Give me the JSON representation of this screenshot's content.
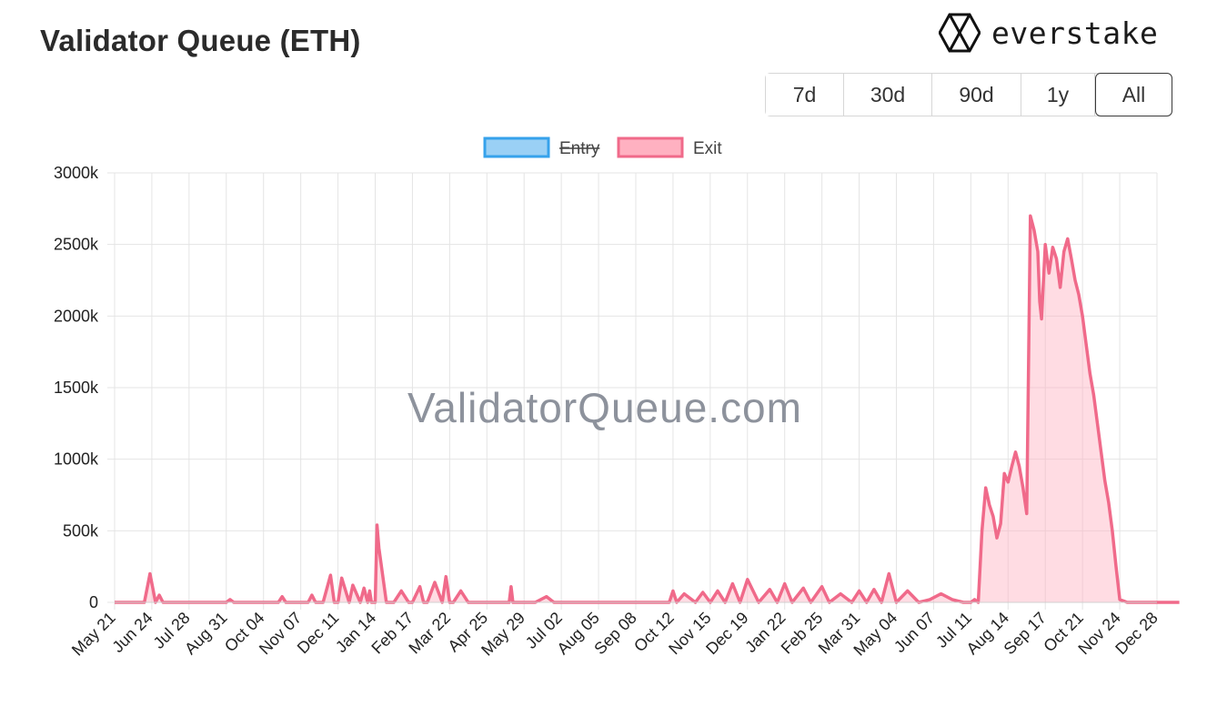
{
  "header": {
    "title": "Validator Queue (ETH)"
  },
  "brand": {
    "name": "everstake",
    "icon": "hexagon-logo-icon"
  },
  "range_buttons": [
    {
      "label": "7d",
      "active": false
    },
    {
      "label": "30d",
      "active": false
    },
    {
      "label": "90d",
      "active": false
    },
    {
      "label": "1y",
      "active": false
    },
    {
      "label": "All",
      "active": true
    }
  ],
  "watermark": "ValidatorQueue.com",
  "chart_data": {
    "type": "area",
    "ylim": [
      0,
      3000000
    ],
    "y_ticks": [
      "0",
      "500k",
      "1000k",
      "1500k",
      "2000k",
      "2500k",
      "3000k"
    ],
    "x_ticks": [
      "May 21",
      "Jun 24",
      "Jul 28",
      "Aug 31",
      "Oct 04",
      "Nov 07",
      "Dec 11",
      "Jan 14",
      "Feb 17",
      "Mar 22",
      "Apr 25",
      "May 29",
      "Jul 02",
      "Aug 05",
      "Sep 08",
      "Oct 12",
      "Nov 15",
      "Dec 19",
      "Jan 22",
      "Feb 25",
      "Mar 31",
      "May 04",
      "Jun 07",
      "Jul 11",
      "Aug 14",
      "Sep 17",
      "Oct 21",
      "Nov 24",
      "Dec 28"
    ],
    "legend": {
      "placement": "top-center"
    },
    "grid": true,
    "series": [
      {
        "name": "Entry",
        "hidden": true,
        "color": "#36a2eb",
        "fill": "#9ad0f5",
        "values": []
      },
      {
        "name": "Exit",
        "hidden": false,
        "color": "#f06a8a",
        "fill": "#ffb1c1",
        "x": [
          0,
          0.5,
          0.8,
          0.95,
          1.1,
          1.2,
          1.3,
          1.4,
          1.6,
          3,
          3.1,
          3.2,
          4.4,
          4.5,
          4.6,
          5.2,
          5.3,
          5.4,
          5.6,
          5.8,
          5.9,
          6.0,
          6.1,
          6.3,
          6.4,
          6.6,
          6.7,
          6.8,
          6.85,
          6.9,
          7.0,
          7.05,
          7.1,
          7.3,
          7.5,
          7.7,
          7.9,
          8.0,
          8.2,
          8.3,
          8.4,
          8.6,
          8.8,
          8.9,
          9.0,
          9.1,
          9.3,
          9.5,
          10.0,
          10.6,
          10.65,
          10.7,
          11.0,
          11.3,
          11.6,
          11.8,
          12.0,
          12.3,
          12.7,
          13.0,
          13.5,
          14.0,
          14.5,
          14.9,
          15.0,
          15.1,
          15.3,
          15.6,
          15.8,
          16.0,
          16.2,
          16.4,
          16.6,
          16.8,
          17.0,
          17.3,
          17.6,
          17.8,
          18.0,
          18.2,
          18.5,
          18.7,
          19.0,
          19.2,
          19.5,
          19.8,
          20.0,
          20.2,
          20.4,
          20.6,
          20.8,
          21.0,
          21.3,
          21.6,
          21.9,
          22.2,
          22.5,
          22.8,
          23.0,
          23.1,
          23.2,
          23.3,
          23.4,
          23.5,
          23.6,
          23.7,
          23.8,
          23.9,
          24.0,
          24.1,
          24.2,
          24.3,
          24.4,
          24.5,
          24.6,
          24.7,
          24.8,
          24.85,
          24.9,
          25.0,
          25.1,
          25.2,
          25.3,
          25.4,
          25.5,
          25.6,
          25.7,
          25.8,
          25.9,
          26.0,
          26.1,
          26.2,
          26.3,
          26.4,
          26.5,
          26.6,
          26.7,
          26.8,
          26.9,
          27.0,
          27.2,
          27.4,
          27.6,
          27.8,
          28.0,
          28.2,
          28.4,
          28.6
        ],
        "values": [
          0,
          0,
          0,
          200000,
          0,
          50000,
          0,
          0,
          0,
          0,
          20000,
          0,
          0,
          40000,
          0,
          0,
          50000,
          0,
          0,
          190000,
          0,
          0,
          170000,
          0,
          120000,
          0,
          100000,
          0,
          80000,
          0,
          0,
          540000,
          380000,
          0,
          0,
          80000,
          0,
          0,
          110000,
          0,
          0,
          140000,
          0,
          180000,
          0,
          0,
          80000,
          0,
          0,
          0,
          110000,
          0,
          0,
          0,
          40000,
          0,
          0,
          0,
          0,
          0,
          0,
          0,
          0,
          0,
          80000,
          0,
          60000,
          0,
          70000,
          0,
          80000,
          0,
          130000,
          0,
          160000,
          0,
          90000,
          0,
          130000,
          0,
          100000,
          0,
          110000,
          0,
          60000,
          0,
          80000,
          0,
          90000,
          0,
          200000,
          0,
          80000,
          0,
          20000,
          60000,
          20000,
          0,
          0,
          20000,
          0,
          500000,
          800000,
          680000,
          600000,
          450000,
          550000,
          900000,
          840000,
          950000,
          1050000,
          950000,
          800000,
          620000,
          2700000,
          2600000,
          2450000,
          2100000,
          1980000,
          2500000,
          2300000,
          2480000,
          2400000,
          2200000,
          2450000,
          2540000,
          2400000,
          2250000,
          2150000,
          2000000,
          1800000,
          1600000,
          1450000,
          1250000,
          1050000,
          850000,
          700000,
          500000,
          250000,
          20000,
          0,
          0,
          0,
          0,
          0,
          0,
          0,
          0
        ]
      }
    ]
  }
}
